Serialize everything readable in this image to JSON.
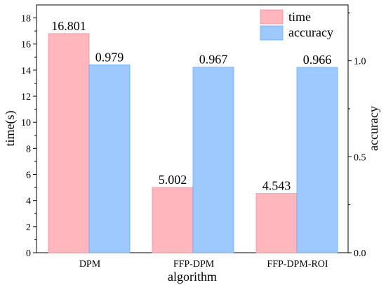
{
  "chart_data": {
    "type": "bar",
    "categories": [
      "DPM",
      "FFP-DPM",
      "FFP-DPM-ROI"
    ],
    "xlabel": "algorithm",
    "series": [
      {
        "name": "time",
        "axis": "left",
        "color": "#ffb6bd",
        "values": [
          16.801,
          5.002,
          4.543
        ],
        "labels": [
          "16.801",
          "5.002",
          "4.543"
        ]
      },
      {
        "name": "accuracy",
        "axis": "right",
        "color": "#9ec9ff",
        "values": [
          0.979,
          0.967,
          0.966
        ],
        "labels": [
          "0.979",
          "0.967",
          "0.966"
        ]
      }
    ],
    "y_left": {
      "label": "time(s)",
      "lim": [
        0,
        19
      ],
      "ticks": [
        0,
        2,
        4,
        6,
        8,
        10,
        12,
        14,
        16,
        18
      ],
      "tick_labels": [
        "0",
        "2",
        "4",
        "6",
        "8",
        "10",
        "12",
        "14",
        "16",
        "18"
      ]
    },
    "y_right": {
      "label": "accuracy",
      "lim": [
        0,
        1.2913
      ],
      "ticks": [
        0,
        0.5,
        1.0
      ],
      "tick_labels": [
        "0.0",
        "0.5",
        "1.0"
      ]
    },
    "legend_position": "top-right",
    "grid": false
  }
}
